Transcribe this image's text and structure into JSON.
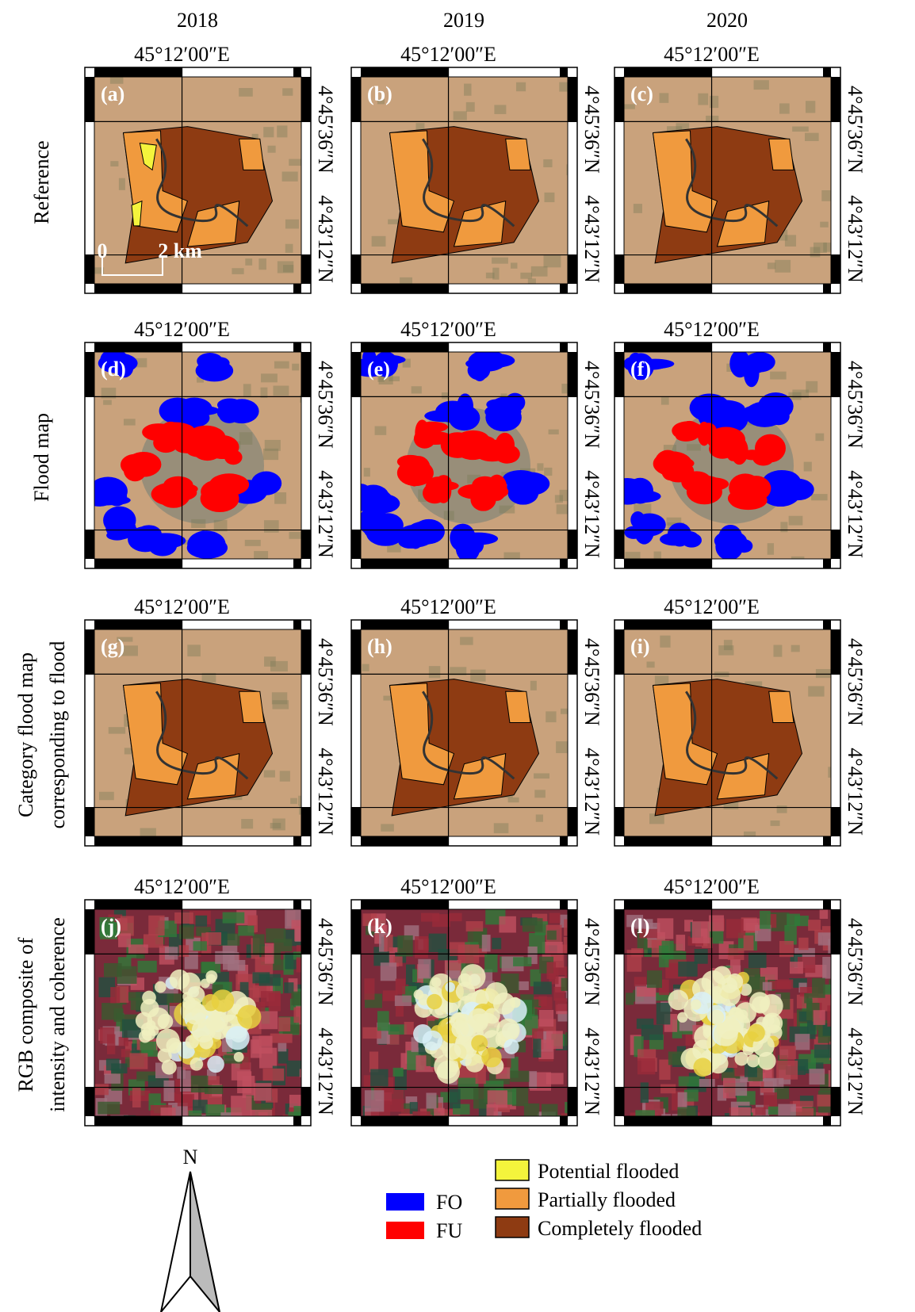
{
  "columns": [
    "2018",
    "2019",
    "2020"
  ],
  "rows": [
    {
      "lines": [
        "Reference"
      ],
      "panels": [
        "(a)",
        "(b)",
        "(c)"
      ]
    },
    {
      "lines": [
        "Flood map"
      ],
      "panels": [
        "(d)",
        "(e)",
        "(f)"
      ]
    },
    {
      "lines": [
        "Category flood map",
        "corresponding to flood"
      ],
      "panels": [
        "(g)",
        "(h)",
        "(i)"
      ]
    },
    {
      "lines": [
        "RGB composite of",
        "intensity and coherence"
      ],
      "panels": [
        "(j)",
        "(k)",
        "(l)"
      ]
    }
  ],
  "longitude_label": "45°12′00″E",
  "latitude_labels": [
    "4°45′36″N",
    "4°43′12″N"
  ],
  "scale_bar": {
    "start": "0",
    "end": "2 km"
  },
  "north_label": "N",
  "legend": {
    "flood_map": [
      {
        "label": "FO",
        "color": "#0000ff"
      },
      {
        "label": "FU",
        "color": "#ff0000"
      }
    ],
    "category": [
      {
        "label": "Potential flooded",
        "color": "#f4f43c"
      },
      {
        "label": "Partially flooded",
        "color": "#f09a3e"
      },
      {
        "label": "Completely flooded",
        "color": "#8e3b12"
      }
    ]
  }
}
